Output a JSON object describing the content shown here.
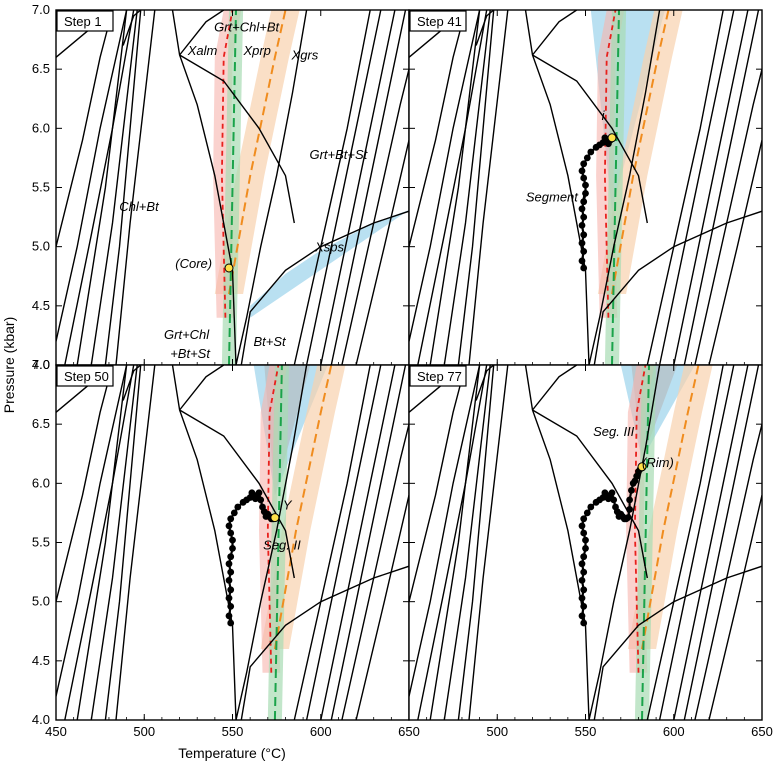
{
  "chart_data": {
    "type": "line",
    "title": "",
    "xlabel": "Temperature (°C)",
    "ylabel": "Pressure (kbar)",
    "xlim": [
      450,
      650
    ],
    "ylim": [
      4.0,
      7.0
    ],
    "x_ticks_major": [
      450,
      500,
      550,
      600,
      650
    ],
    "y_ticks_major": [
      4.0,
      4.5,
      5.0,
      5.5,
      6.0,
      6.5,
      7.0
    ],
    "colors": {
      "xalm": "#e8201c",
      "xprp": "#1aa34a",
      "xgrs": "#f08c1e",
      "xsps": "#1aa3d9",
      "band_xalm": "#f6b4ad",
      "band_xprp": "#a8dcb4",
      "band_xgrs": "#f8d2ae",
      "band_xsps": "#a8d8ee",
      "overlap": "#b4b4b4",
      "path": "#000000",
      "highlight": "#ffe14a"
    },
    "panels": [
      {
        "step": "Step 1",
        "labels": [
          {
            "text": "Grt+Chl+Bt",
            "x": 558,
            "y": 6.82
          },
          {
            "text": "Xalm",
            "x": 533,
            "y": 6.62,
            "color": "xalm"
          },
          {
            "text": "Xprp",
            "x": 564,
            "y": 6.62,
            "color": "xprp"
          },
          {
            "text": "Xgrs",
            "x": 591,
            "y": 6.58,
            "color": "xgrs"
          },
          {
            "text": "Grt+Bt+St",
            "x": 610,
            "y": 5.74
          },
          {
            "text": "Chl+Bt",
            "x": 497,
            "y": 5.3
          },
          {
            "text": "Xsps",
            "x": 605,
            "y": 4.96,
            "color": "xsps"
          },
          {
            "text": "(Core)",
            "x": 528,
            "y": 4.82
          },
          {
            "text": "Grt+Chl",
            "x": 524,
            "y": 4.22
          },
          {
            "text": "+Bt+St",
            "x": 526,
            "y": 4.06
          },
          {
            "text": "Bt+St",
            "x": 571,
            "y": 4.16
          }
        ],
        "points": [
          [
            548,
            4.82
          ]
        ],
        "path": []
      },
      {
        "step": "Step 41",
        "labels": [
          {
            "text": "i",
            "x": 560,
            "y": 6.07
          },
          {
            "text": "Segment I",
            "x": 533,
            "y": 5.38
          }
        ],
        "points": [
          [
            565,
            5.92
          ]
        ],
        "path": [
          [
            549,
            4.82
          ],
          [
            548,
            4.88
          ],
          [
            549,
            4.96
          ],
          [
            548,
            5.03
          ],
          [
            549,
            5.1
          ],
          [
            548,
            5.18
          ],
          [
            549,
            5.25
          ],
          [
            548,
            5.32
          ],
          [
            549,
            5.38
          ],
          [
            550,
            5.45
          ],
          [
            550,
            5.52
          ],
          [
            549,
            5.58
          ],
          [
            548,
            5.64
          ],
          [
            549,
            5.7
          ],
          [
            551,
            5.75
          ],
          [
            553,
            5.8
          ],
          [
            556,
            5.84
          ],
          [
            558,
            5.86
          ],
          [
            560,
            5.88
          ],
          [
            561,
            5.92
          ],
          [
            562,
            5.89
          ],
          [
            563,
            5.87
          ],
          [
            564,
            5.9
          ],
          [
            565,
            5.92
          ]
        ]
      },
      {
        "step": "Step 50",
        "labels": [
          {
            "text": "Y",
            "x": 581,
            "y": 5.78
          },
          {
            "text": "Seg. II",
            "x": 578,
            "y": 5.44
          }
        ],
        "points": [
          [
            574,
            5.71
          ]
        ],
        "path": [
          [
            549,
            4.82
          ],
          [
            548,
            4.88
          ],
          [
            549,
            4.96
          ],
          [
            548,
            5.03
          ],
          [
            549,
            5.1
          ],
          [
            548,
            5.18
          ],
          [
            549,
            5.25
          ],
          [
            548,
            5.32
          ],
          [
            549,
            5.38
          ],
          [
            550,
            5.45
          ],
          [
            550,
            5.52
          ],
          [
            549,
            5.58
          ],
          [
            548,
            5.64
          ],
          [
            549,
            5.7
          ],
          [
            551,
            5.75
          ],
          [
            553,
            5.8
          ],
          [
            556,
            5.84
          ],
          [
            558,
            5.86
          ],
          [
            560,
            5.88
          ],
          [
            561,
            5.92
          ],
          [
            562,
            5.89
          ],
          [
            563,
            5.87
          ],
          [
            564,
            5.9
          ],
          [
            565,
            5.92
          ],
          [
            566,
            5.86
          ],
          [
            567,
            5.8
          ],
          [
            568,
            5.76
          ],
          [
            569,
            5.72
          ],
          [
            570,
            5.74
          ],
          [
            571,
            5.72
          ],
          [
            572,
            5.7
          ],
          [
            573,
            5.7
          ],
          [
            574,
            5.71
          ]
        ]
      },
      {
        "step": "Step 77",
        "labels": [
          {
            "text": "Seg. III",
            "x": 566,
            "y": 6.4
          },
          {
            "text": "(Rim)",
            "x": 591,
            "y": 6.14
          }
        ],
        "points": [
          [
            582,
            6.14
          ]
        ],
        "path": [
          [
            549,
            4.82
          ],
          [
            548,
            4.88
          ],
          [
            549,
            4.96
          ],
          [
            548,
            5.03
          ],
          [
            549,
            5.1
          ],
          [
            548,
            5.18
          ],
          [
            549,
            5.25
          ],
          [
            548,
            5.32
          ],
          [
            549,
            5.38
          ],
          [
            550,
            5.45
          ],
          [
            550,
            5.52
          ],
          [
            549,
            5.58
          ],
          [
            548,
            5.64
          ],
          [
            549,
            5.7
          ],
          [
            551,
            5.75
          ],
          [
            553,
            5.8
          ],
          [
            556,
            5.84
          ],
          [
            558,
            5.86
          ],
          [
            560,
            5.88
          ],
          [
            561,
            5.92
          ],
          [
            562,
            5.89
          ],
          [
            563,
            5.87
          ],
          [
            564,
            5.9
          ],
          [
            565,
            5.92
          ],
          [
            566,
            5.86
          ],
          [
            567,
            5.8
          ],
          [
            568,
            5.76
          ],
          [
            569,
            5.72
          ],
          [
            570,
            5.74
          ],
          [
            571,
            5.72
          ],
          [
            572,
            5.7
          ],
          [
            573,
            5.7
          ],
          [
            574,
            5.71
          ],
          [
            575,
            5.78
          ],
          [
            575,
            5.86
          ],
          [
            576,
            5.94
          ],
          [
            577,
            6.0
          ],
          [
            578,
            6.02
          ],
          [
            579,
            6.06
          ],
          [
            580,
            6.1
          ],
          [
            581,
            6.12
          ],
          [
            582,
            6.14
          ]
        ]
      }
    ]
  }
}
